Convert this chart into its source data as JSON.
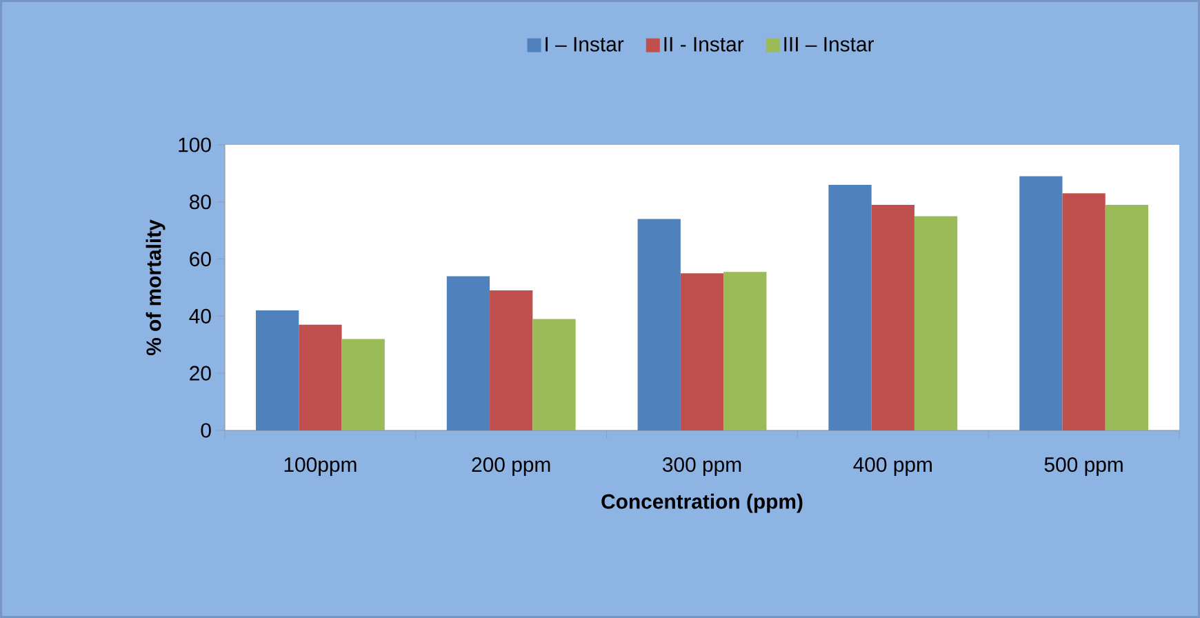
{
  "chart_data": {
    "type": "bar",
    "xlabel": "Concentration (ppm)",
    "ylabel": "% of mortality",
    "categories": [
      "100ppm",
      "200 ppm",
      "300 ppm",
      "400 ppm",
      "500 ppm"
    ],
    "series": [
      {
        "name": "I – Instar",
        "color": "#4f81bd",
        "values": [
          42,
          54,
          74,
          86,
          89
        ]
      },
      {
        "name": "II - Instar",
        "color": "#c0504d",
        "values": [
          37,
          49,
          55,
          79,
          83
        ]
      },
      {
        "name": "III – Instar",
        "color": "#9bbb59",
        "values": [
          32,
          39,
          55.5,
          75,
          79
        ]
      }
    ],
    "ylim": [
      0,
      100
    ],
    "yticks": [
      0,
      20,
      40,
      60,
      80,
      100
    ],
    "legend": "top"
  }
}
